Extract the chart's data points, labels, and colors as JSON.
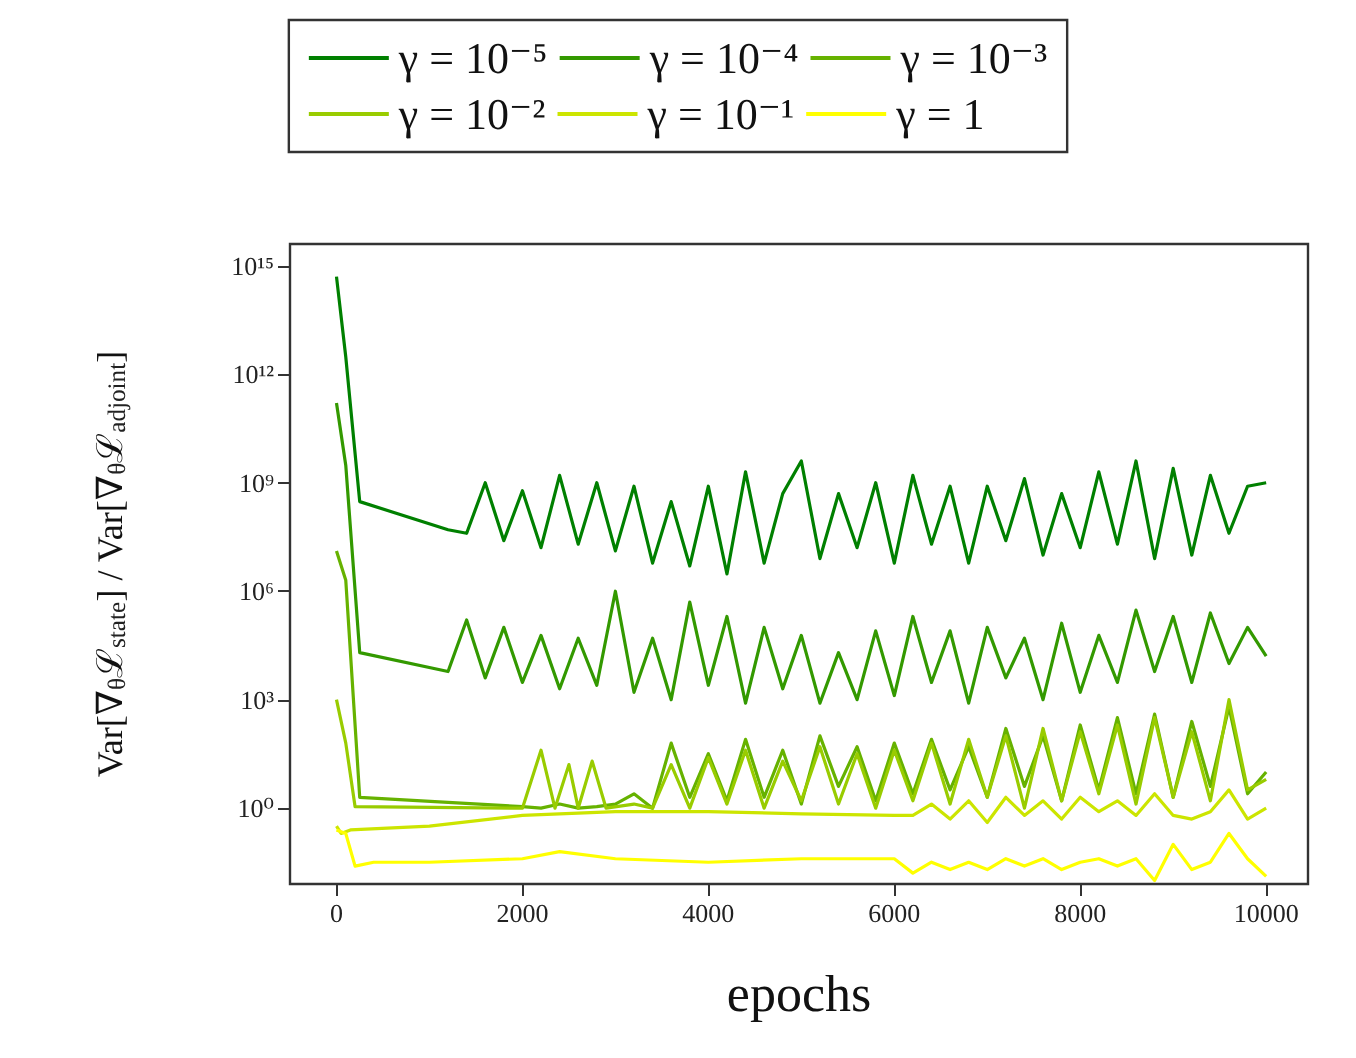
{
  "chart_data": {
    "type": "line",
    "xlabel": "epochs",
    "ylabel": "Var[∇$_{θ}$ℒ$_{state}$] / Var[∇$_{θ}$ℒ$_{adjoint}$]",
    "log": "y",
    "grid": false,
    "legend": "top",
    "line_style": "solid",
    "marker": "none",
    "xlim": [
      -500,
      10450
    ],
    "xticks": [
      0,
      2000,
      4000,
      6000,
      8000,
      10000
    ],
    "ylim": [
      0.008,
      4000000000000000.0
    ],
    "yticks": [
      {
        "value": 1,
        "label": "10⁰"
      },
      {
        "value": 1000.0,
        "label": "10³"
      },
      {
        "value": 1000000.0,
        "label": "10⁶"
      },
      {
        "value": 1000000000.0,
        "label": "10⁹"
      },
      {
        "value": 1000000000000.0,
        "label": "10¹²"
      },
      {
        "value": 1000000000000000.0,
        "label": "10¹⁵"
      }
    ],
    "series": [
      {
        "name": "γ = 10⁻⁵",
        "color": "#008000",
        "x": [
          0,
          100,
          250,
          1200,
          1400,
          1600,
          1800,
          2000,
          2200,
          2400,
          2600,
          2800,
          3000,
          3200,
          3400,
          3600,
          3800,
          4000,
          4200,
          4400,
          4600,
          4800,
          5000,
          5200,
          5400,
          5600,
          5800,
          6000,
          6200,
          6400,
          6600,
          6800,
          7000,
          7200,
          7400,
          7600,
          7800,
          8000,
          8200,
          8400,
          8600,
          8800,
          9000,
          9200,
          9400,
          9600,
          9800,
          10000
        ],
        "values": [
          500000000000000.0,
          3000000000000.0,
          300000000.0,
          50000000.0,
          40000000.0,
          1000000000.0,
          25000000.0,
          600000000.0,
          16000000.0,
          1600000000.0,
          20000000.0,
          1000000000.0,
          13000000.0,
          800000000.0,
          6000000.0,
          300000000.0,
          5000000.0,
          800000000.0,
          3000000.0,
          2000000000.0,
          6000000.0,
          500000000.0,
          4000000000.0,
          8000000.0,
          500000000.0,
          16000000.0,
          1000000000.0,
          6000000.0,
          1600000000.0,
          20000000.0,
          800000000.0,
          6000000.0,
          800000000.0,
          25000000.0,
          1300000000.0,
          10000000.0,
          500000000.0,
          16000000.0,
          2000000000.0,
          20000000.0,
          4000000000.0,
          8000000.0,
          2500000000.0,
          10000000.0,
          1600000000.0,
          40000000.0,
          800000000.0,
          1000000000.0
        ]
      },
      {
        "name": "γ = 10⁻⁴",
        "color": "#339900",
        "x": [
          0,
          100,
          250,
          1200,
          1400,
          1600,
          1800,
          2000,
          2200,
          2400,
          2600,
          2800,
          3000,
          3200,
          3400,
          3600,
          3800,
          4000,
          4200,
          4400,
          4600,
          4800,
          5000,
          5200,
          5400,
          5600,
          5800,
          6000,
          6200,
          6400,
          6600,
          6800,
          7000,
          7200,
          7400,
          7600,
          7800,
          8000,
          8200,
          8400,
          8600,
          8800,
          9000,
          9200,
          9400,
          9600,
          9800,
          10000
        ],
        "values": [
          160000000000.0,
          3000000000.0,
          20000.0,
          6000.0,
          160000.0,
          4000.0,
          100000.0,
          3000.0,
          60000.0,
          2000.0,
          50000.0,
          2500.0,
          1000000.0,
          1600.0,
          50000.0,
          1000.0,
          500000.0,
          2500.0,
          200000.0,
          800,
          100000.0,
          2000.0,
          60000.0,
          800,
          20000.0,
          1000.0,
          80000.0,
          1300.0,
          200000.0,
          3000.0,
          80000.0,
          800,
          100000.0,
          4000.0,
          50000.0,
          1000.0,
          130000.0,
          1600.0,
          60000.0,
          3000.0,
          300000.0,
          6000.0,
          200000.0,
          3000.0,
          250000.0,
          10000.0,
          100000.0,
          16000.0
        ]
      },
      {
        "name": "γ = 10⁻³",
        "color": "#66b200",
        "x": [
          0,
          100,
          250,
          2000,
          2200,
          2400,
          2600,
          2800,
          3000,
          3200,
          3400,
          3600,
          3800,
          4000,
          4200,
          4400,
          4600,
          4800,
          5000,
          5200,
          5400,
          5600,
          5800,
          6000,
          6200,
          6400,
          6600,
          6800,
          7000,
          7200,
          7400,
          7600,
          7800,
          8000,
          8200,
          8400,
          8600,
          8800,
          9000,
          9200,
          9400,
          9600,
          9800,
          10000
        ],
        "values": [
          13000000.0,
          2000000.0,
          2,
          1.1,
          1,
          1.3,
          1,
          1.1,
          1.3,
          2.5,
          1,
          63,
          2,
          32,
          1.6,
          80,
          2,
          40,
          1.3,
          100,
          4,
          50,
          1.6,
          63,
          2.5,
          80,
          3.2,
          50,
          2,
          160,
          4,
          100,
          1.6,
          200,
          3.2,
          320,
          2.5,
          400,
          2,
          250,
          4,
          630,
          2.5,
          10
        ]
      },
      {
        "name": "γ = 10⁻²",
        "color": "#99cc00",
        "x": [
          0,
          100,
          200,
          2000,
          2200,
          2350,
          2500,
          2600,
          2750,
          2900,
          3200,
          3400,
          3600,
          3800,
          4000,
          4200,
          4400,
          4600,
          4800,
          5000,
          5200,
          5400,
          5600,
          5800,
          6000,
          6200,
          6400,
          6600,
          6800,
          7000,
          7200,
          7400,
          7600,
          7800,
          8000,
          8200,
          8400,
          8600,
          8800,
          9000,
          9200,
          9400,
          9600,
          9800,
          10000
        ],
        "values": [
          1000,
          63,
          1.1,
          1,
          40,
          1,
          16,
          1,
          20,
          1,
          1.3,
          1,
          16,
          1,
          25,
          1.3,
          40,
          1,
          20,
          1.6,
          50,
          1.3,
          32,
          1,
          40,
          1.6,
          63,
          1.3,
          80,
          2,
          100,
          1,
          160,
          1.6,
          130,
          2.5,
          200,
          1.3,
          320,
          2,
          130,
          1.6,
          1000,
          3.2,
          6.3
        ]
      },
      {
        "name": "γ = 10⁻¹",
        "color": "#cce500",
        "x": [
          0,
          50,
          150,
          1000,
          2000,
          3000,
          4000,
          5000,
          6000,
          6200,
          6400,
          6600,
          6800,
          7000,
          7200,
          7400,
          7600,
          7800,
          8000,
          8200,
          8400,
          8600,
          8800,
          9000,
          9200,
          9400,
          9600,
          9800,
          10000
        ],
        "values": [
          0.32,
          0.2,
          0.25,
          0.32,
          0.63,
          0.8,
          0.8,
          0.7,
          0.63,
          0.63,
          1.3,
          0.5,
          1.6,
          0.4,
          2,
          0.63,
          1.6,
          0.5,
          2,
          0.8,
          1.6,
          0.63,
          2.5,
          0.63,
          0.5,
          0.8,
          3.2,
          0.5,
          1
        ]
      },
      {
        "name": "γ = 1",
        "color": "#ffff00",
        "x": [
          0,
          100,
          200,
          400,
          1000,
          2000,
          2400,
          3000,
          4000,
          5000,
          6000,
          6200,
          6400,
          6600,
          6800,
          7000,
          7200,
          7400,
          7600,
          7800,
          8000,
          8200,
          8400,
          8600,
          8800,
          9000,
          9200,
          9400,
          9600,
          9800,
          10000
        ],
        "values": [
          0.25,
          0.2,
          0.025,
          0.032,
          0.032,
          0.04,
          0.063,
          0.04,
          0.032,
          0.04,
          0.04,
          0.016,
          0.032,
          0.02,
          0.032,
          0.02,
          0.04,
          0.025,
          0.04,
          0.02,
          0.032,
          0.04,
          0.025,
          0.04,
          0.01,
          0.1,
          0.02,
          0.032,
          0.2,
          0.04,
          0.013
        ]
      }
    ]
  }
}
